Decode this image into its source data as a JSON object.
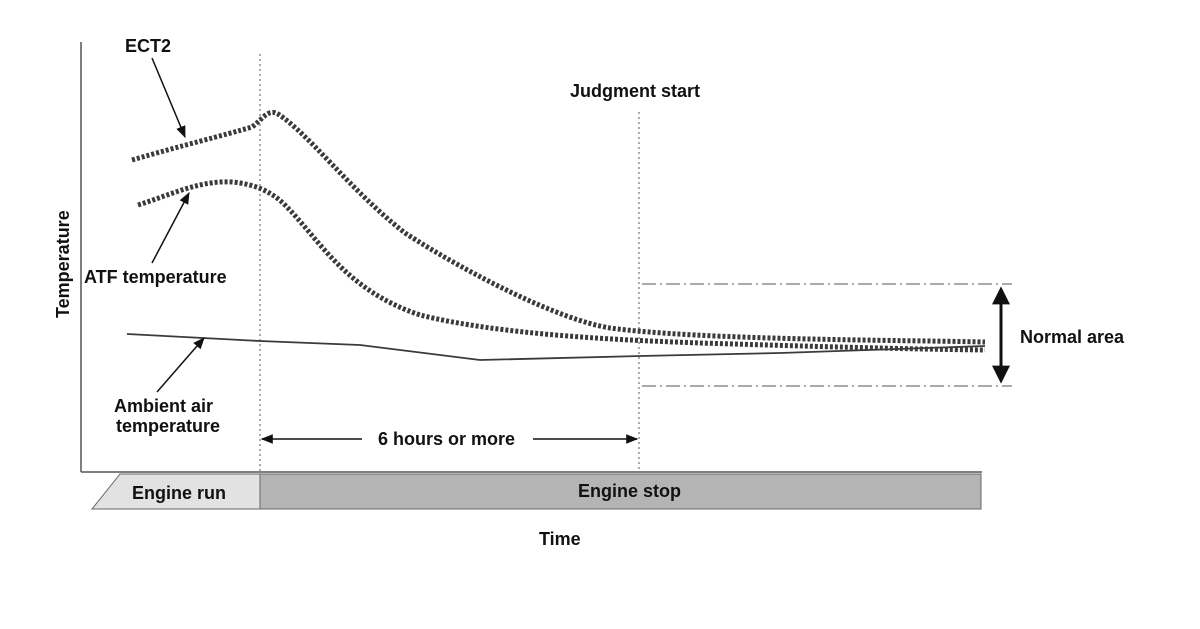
{
  "labels": {
    "y_axis": "Temperature",
    "x_axis": "Time",
    "ect2": "ECT2",
    "atf": "ATF temperature",
    "ambient_line1": "Ambient air",
    "ambient_line2": "temperature",
    "judgment": "Judgment start",
    "duration": "6 hours or more",
    "normal": "Normal area",
    "phase_run": "Engine run",
    "phase_stop": "Engine stop"
  },
  "colors": {
    "line": "#3a3a3a",
    "axis": "#555555",
    "run_fill": "#e2e2e2",
    "stop_fill": "#b4b4b4"
  }
}
